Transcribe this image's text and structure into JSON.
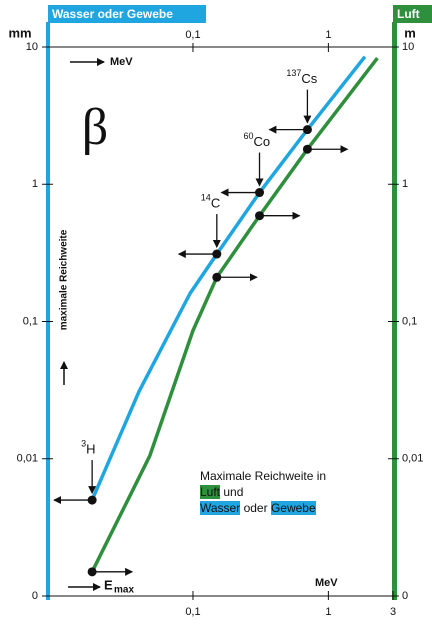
{
  "chart_data": {
    "type": "line",
    "symbol": "β",
    "y_label": "mm",
    "y2_label": "m",
    "y_title": "maximale Reichweite",
    "x_label": "MeV",
    "x_title": {
      "symbol": "E",
      "subscript": "max"
    },
    "xlog": true,
    "ylog": true,
    "xlim": [
      0.0085,
      3
    ],
    "ylim": [
      0.001,
      10
    ],
    "y2lim": [
      0.001,
      10
    ],
    "xticks": [
      {
        "value": 0.1,
        "label": "0,1"
      },
      1,
      3
    ],
    "yticks": [
      {
        "value": 0.001,
        "label": "0"
      },
      {
        "value": 0.01,
        "label": "0,01"
      },
      {
        "value": 0.1,
        "label": "0,1"
      },
      1,
      10
    ],
    "y2ticks": [
      {
        "value": 0.001,
        "label": "0"
      },
      {
        "value": 0.01,
        "label": "0,01"
      },
      {
        "value": 0.1,
        "label": "0,1"
      },
      1,
      10
    ],
    "series": [
      {
        "name": "Wasser oder Gewebe",
        "color": "#1fa6e0",
        "x": [
          0.018,
          0.04,
          0.095,
          0.15,
          0.31,
          0.7,
          1.86
        ],
        "values": [
          0.005,
          0.031,
          0.16,
          0.31,
          0.87,
          2.5,
          8.5
        ]
      },
      {
        "name": "Luft",
        "color": "#2e8f3c",
        "axis": "y2",
        "x": [
          0.018,
          0.048,
          0.1,
          0.15,
          0.31,
          0.7,
          2.3
        ],
        "values": [
          0.0015,
          0.0105,
          0.086,
          0.21,
          0.59,
          1.8,
          8.3
        ]
      }
    ],
    "isotopes": [
      {
        "mass": "3",
        "element": "H",
        "energy": 0.018,
        "water": 0.005,
        "air": 0.0015
      },
      {
        "mass": "14",
        "element": "C",
        "energy": 0.15,
        "water": 0.31,
        "air": 0.21
      },
      {
        "mass": "60",
        "element": "Co",
        "energy": 0.31,
        "water": 0.87,
        "air": 0.59
      },
      {
        "mass": "137",
        "element": "Cs",
        "energy": 0.7,
        "water": 2.5,
        "air": 1.8
      }
    ],
    "legend": {
      "title": "Maximale Reichweite in",
      "air": "Luft",
      "and": "und",
      "water": "Wasser",
      "or": "oder",
      "tissue": "Gewebe"
    }
  }
}
